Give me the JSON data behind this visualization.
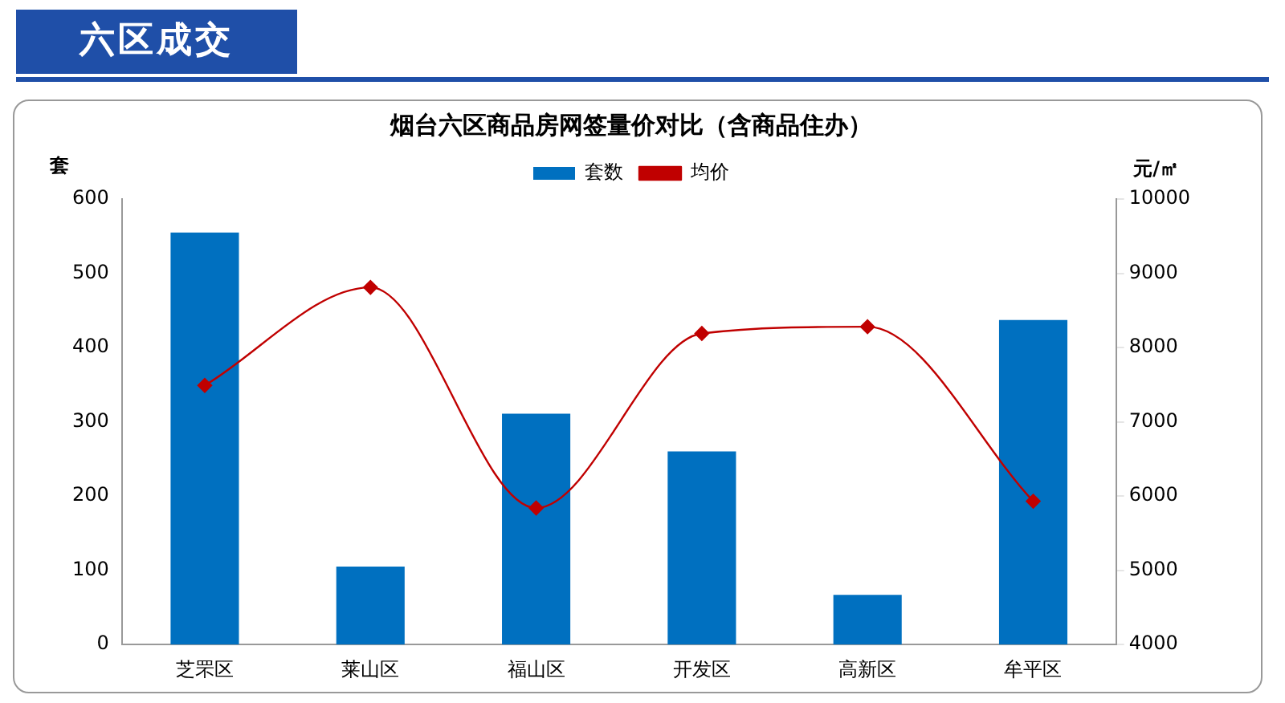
{
  "chart_data": {
    "type": "bar",
    "title": "烟台六区商品房网签量价对比（含商品住办）",
    "annotations": [
      "六区成交"
    ],
    "categories": [
      "芝罘区",
      "莱山区",
      "福山区",
      "开发区",
      "高新区",
      "牟平区"
    ],
    "ylabel": "套",
    "y2label": "元/㎡",
    "series": [
      {
        "name": "套数",
        "color": "#0070c0",
        "values": [
          555,
          105,
          311,
          260,
          67,
          437
        ]
      },
      {
        "name": "均价",
        "type": "line",
        "axis": "y2",
        "color": "#c00000",
        "marker": "diamond",
        "values": [
          7490,
          8810,
          5840,
          8190,
          8280,
          5930
        ]
      }
    ],
    "ylim": [
      0,
      600
    ],
    "yticks": [
      0,
      100,
      200,
      300,
      400,
      500,
      600
    ],
    "y2lim": [
      4000,
      10000
    ],
    "y2ticks": [
      4000,
      5000,
      6000,
      7000,
      8000,
      9000,
      10000
    ],
    "grid": false,
    "legend": "top"
  }
}
